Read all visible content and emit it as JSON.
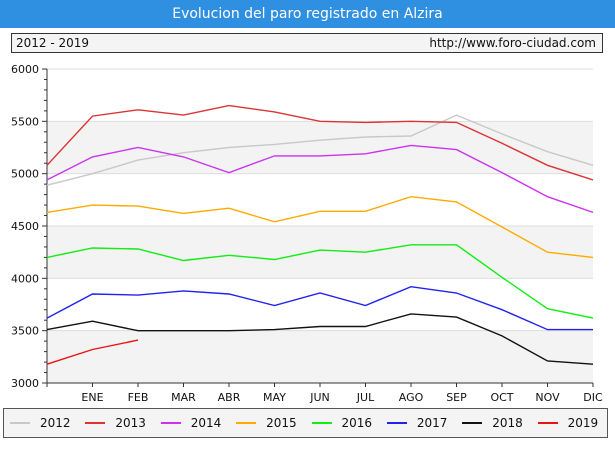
{
  "title": "Evolucion del paro registrado en Alzira",
  "period": "2012 - 2019",
  "url": "http://www.foro-ciudad.com",
  "chart_data": {
    "type": "line",
    "categories": [
      "",
      "ENE",
      "FEB",
      "MAR",
      "ABR",
      "MAY",
      "JUN",
      "JUL",
      "AGO",
      "SEP",
      "OCT",
      "NOV",
      "DIC"
    ],
    "ylim": [
      3000,
      6000
    ],
    "yticks": [
      3000,
      3500,
      4000,
      4500,
      5000,
      5500,
      6000
    ],
    "ytick_labels": [
      "3000",
      "3500",
      "4000",
      "4500",
      "5000",
      "5500",
      "6000"
    ],
    "grid": true,
    "legend_position": "bottom",
    "series": [
      {
        "name": "2012",
        "color": "#c8c8c8",
        "values": [
          4890,
          5000,
          5130,
          5200,
          5250,
          5280,
          5320,
          5350,
          5360,
          5560,
          5380,
          5210,
          5080
        ]
      },
      {
        "name": "2013",
        "color": "#dd3333",
        "values": [
          5080,
          5550,
          5610,
          5560,
          5650,
          5590,
          5500,
          5490,
          5500,
          5490,
          5290,
          5080,
          4940
        ]
      },
      {
        "name": "2014",
        "color": "#cc33ee",
        "values": [
          4940,
          5160,
          5250,
          5160,
          5010,
          5170,
          5170,
          5190,
          5270,
          5230,
          5010,
          4780,
          4630
        ]
      },
      {
        "name": "2015",
        "color": "#ffaa00",
        "values": [
          4630,
          4700,
          4690,
          4620,
          4670,
          4540,
          4640,
          4640,
          4780,
          4730,
          4490,
          4250,
          4200
        ]
      },
      {
        "name": "2016",
        "color": "#11ee11",
        "values": [
          4200,
          4290,
          4280,
          4170,
          4220,
          4180,
          4270,
          4250,
          4320,
          4320,
          4010,
          3710,
          3620
        ]
      },
      {
        "name": "2017",
        "color": "#2222ee",
        "values": [
          3620,
          3850,
          3840,
          3880,
          3850,
          3740,
          3860,
          3740,
          3920,
          3860,
          3700,
          3510,
          3510
        ]
      },
      {
        "name": "2018",
        "color": "#111111",
        "values": [
          3510,
          3590,
          3500,
          3500,
          3500,
          3510,
          3540,
          3540,
          3660,
          3630,
          3450,
          3210,
          3180
        ]
      },
      {
        "name": "2019",
        "color": "#ee1111",
        "values": [
          3180,
          3320,
          3410,
          null,
          null,
          null,
          null,
          null,
          null,
          null,
          null,
          null,
          null
        ]
      }
    ]
  }
}
